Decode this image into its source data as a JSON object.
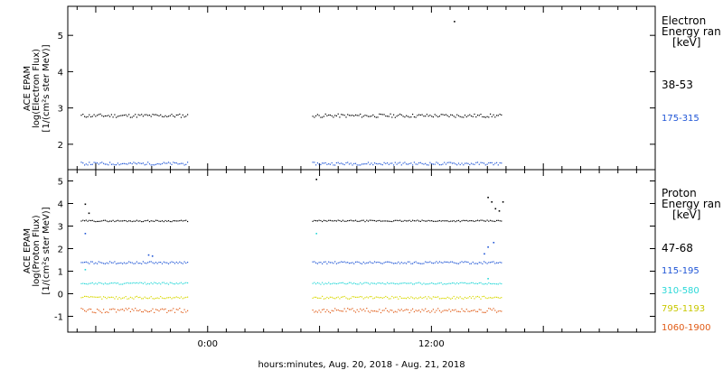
{
  "colors": {
    "black": "#000000",
    "blue": "#1f55d6",
    "cyan": "#2ad8d8",
    "yellow": "#d8d800",
    "orange": "#e05a14"
  },
  "xaxis": {
    "label": "hours:minutes, Aug. 20, 2018 - Aug. 21, 2018",
    "ticks": [
      {
        "value": 0,
        "label": "0:00"
      },
      {
        "value": 12,
        "label": "12:00"
      }
    ]
  },
  "chart_data": [
    {
      "type": "scatter",
      "panel": "electron",
      "ylabel": [
        "ACE EPAM",
        "log(Electron Flux)",
        "[1/(cm²s ster MeV)]"
      ],
      "x_unit": "hours from 0:00 Aug. 20, 2018",
      "xlim": [
        -7.5,
        24
      ],
      "ylim": [
        1.3,
        5.8
      ],
      "yticks": [
        2,
        3,
        4,
        5
      ],
      "legend_title": [
        "Electron",
        "Energy ran",
        "[keV]"
      ],
      "gaps": [
        [
          -1.1,
          5.6
        ]
      ],
      "series": [
        {
          "name": "38-53",
          "color": "black",
          "value": 2.8,
          "noise": 0.05,
          "start": -6.8,
          "end": 15.8,
          "points": [
            {
              "x": 13.2,
              "y": 5.4
            }
          ]
        },
        {
          "name": "175-315",
          "color": "blue",
          "value": 1.48,
          "noise": 0.04,
          "start": -6.8,
          "end": 15.8
        }
      ]
    },
    {
      "type": "scatter",
      "panel": "proton",
      "ylabel": [
        "ACE EPAM",
        "log(Proton Flux)",
        "[1/(cm²s ster MeV)]"
      ],
      "x_unit": "hours from 0:00 Aug. 20, 2018",
      "xlim": [
        -7.5,
        24
      ],
      "ylim": [
        -1.7,
        5.5
      ],
      "yticks": [
        -1,
        0,
        1,
        2,
        3,
        4,
        5
      ],
      "legend_title": [
        "Proton",
        "Energy ran",
        "[keV]"
      ],
      "gaps": [
        [
          -1.1,
          5.6
        ]
      ],
      "series": [
        {
          "name": "47-68",
          "color": "black",
          "value": 3.25,
          "noise": 0.03,
          "start": -6.8,
          "end": 15.8,
          "points": [
            {
              "x": -6.6,
              "y": 4.0
            },
            {
              "x": -6.4,
              "y": 3.6
            },
            {
              "x": 5.8,
              "y": 5.1
            },
            {
              "x": 15.0,
              "y": 4.3
            },
            {
              "x": 15.2,
              "y": 4.1
            },
            {
              "x": 15.4,
              "y": 3.8
            },
            {
              "x": 15.6,
              "y": 3.7
            },
            {
              "x": 15.8,
              "y": 4.1
            }
          ]
        },
        {
          "name": "115-195",
          "color": "blue",
          "value": 1.4,
          "noise": 0.05,
          "start": -6.8,
          "end": 15.8,
          "points": [
            {
              "x": -6.6,
              "y": 2.7
            },
            {
              "x": -3.2,
              "y": 1.75
            },
            {
              "x": -3.0,
              "y": 1.7
            },
            {
              "x": 14.8,
              "y": 1.8
            },
            {
              "x": 15.0,
              "y": 2.1
            },
            {
              "x": 15.3,
              "y": 2.3
            }
          ]
        },
        {
          "name": "310-580",
          "color": "cyan",
          "value": 0.48,
          "noise": 0.04,
          "start": -6.8,
          "end": 15.8,
          "points": [
            {
              "x": -6.6,
              "y": 1.1
            },
            {
              "x": 5.8,
              "y": 2.7
            },
            {
              "x": 15.0,
              "y": 0.7
            }
          ]
        },
        {
          "name": "795-1193",
          "color": "yellow",
          "value": -0.15,
          "noise": 0.06,
          "start": -6.8,
          "end": 15.8
        },
        {
          "name": "1060-1900",
          "color": "orange",
          "value": -0.72,
          "noise": 0.1,
          "start": -6.8,
          "end": 15.8
        }
      ]
    }
  ]
}
